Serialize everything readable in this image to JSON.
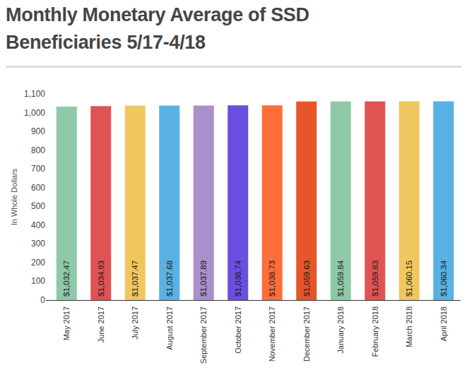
{
  "chart_data": {
    "type": "bar",
    "title": "Monthly Monetary Average of SSD Beneficiaries 5/17-4/18",
    "y_label": "In Whole Dollars",
    "categories": [
      "May 2017",
      "June 2017",
      "July 2017",
      "August 2017",
      "September 2017",
      "October 2017",
      "November 2017",
      "December 2017",
      "January 2018",
      "February 2018",
      "March 2018",
      "April 2018"
    ],
    "values": [
      1032.47,
      1034.93,
      1037.47,
      1037.68,
      1037.89,
      1038.74,
      1038.73,
      1059.63,
      1059.84,
      1059.83,
      1060.15,
      1060.34
    ],
    "value_labels": [
      "$1,032.47",
      "$1,034.93",
      "$1,037.47",
      "$1,037.68",
      "$1,037.89",
      "$1,038.74",
      "$1,038.73",
      "$1,059.63",
      "$1,059.84",
      "$1,059.83",
      "$1,060.15",
      "$1,060.34"
    ],
    "colors": [
      "#8ec9a8",
      "#e05353",
      "#f0c75e",
      "#5ab1e3",
      "#a98fcb",
      "#6a4fe0",
      "#ff6d3a",
      "#e5562a",
      "#8ec9a8",
      "#e05353",
      "#f0c75e",
      "#5ab1e3"
    ],
    "ylim": [
      0,
      1100
    ],
    "yticks": [
      0,
      100,
      200,
      300,
      400,
      500,
      600,
      700,
      800,
      900,
      {
        "value": 1000,
        "label": "1,000"
      },
      {
        "value": 1100,
        "label": "1,100"
      }
    ],
    "grid": false,
    "data_labels": true
  }
}
